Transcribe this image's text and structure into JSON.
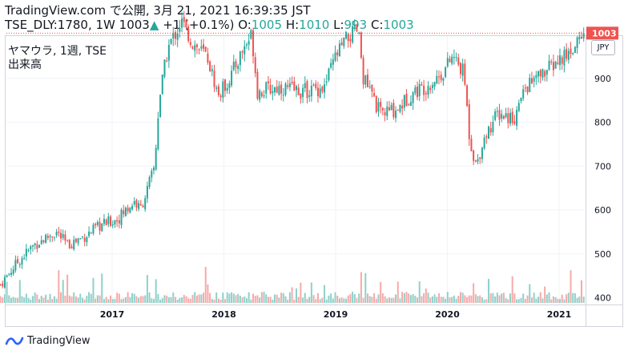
{
  "header": {
    "site": "TradingView.com",
    "published_prefix": "で公開,",
    "date": "3月 21, 2021 16:39:35 JST",
    "ticker": "TSE_DLY:1780, 1W",
    "price": "1003",
    "change": "+1 (+0.1%)",
    "o_label": "O:",
    "o_value": "1005",
    "h_label": "H:",
    "h_value": "1010",
    "l_label": "L:",
    "l_value": "993",
    "c_label": "C:",
    "c_value": "1003"
  },
  "legend": {
    "symbol": "ヤマウラ, 1週, TSE",
    "subtitle": "出来高"
  },
  "currency_button": "JPY",
  "footer": {
    "brand": "TradingView"
  },
  "colors": {
    "up": "#26a69a",
    "down": "#ef5350",
    "last": "#ef5350",
    "vol_up": "#8fd1c9",
    "vol_down": "#f5aaa9"
  },
  "chart_data": {
    "type": "candlestick",
    "last_price": 1003,
    "y_ticks": [
      400,
      500,
      600,
      700,
      800,
      900
    ],
    "x_ticks": [
      "2017",
      "2018",
      "2019",
      "2020",
      "2021"
    ],
    "close_points": [
      [
        2016.0,
        430
      ],
      [
        2016.15,
        480
      ],
      [
        2016.3,
        520
      ],
      [
        2016.5,
        550
      ],
      [
        2016.6,
        520
      ],
      [
        2016.75,
        540
      ],
      [
        2016.9,
        565
      ],
      [
        2017.05,
        580
      ],
      [
        2017.2,
        620
      ],
      [
        2017.25,
        600
      ],
      [
        2017.32,
        650
      ],
      [
        2017.38,
        700
      ],
      [
        2017.42,
        850
      ],
      [
        2017.5,
        970
      ],
      [
        2017.62,
        1030
      ],
      [
        2017.72,
        980
      ],
      [
        2017.85,
        950
      ],
      [
        2017.95,
        860
      ],
      [
        2018.05,
        900
      ],
      [
        2018.18,
        970
      ],
      [
        2018.25,
        1000
      ],
      [
        2018.3,
        870
      ],
      [
        2018.5,
        880
      ],
      [
        2018.7,
        870
      ],
      [
        2018.9,
        880
      ],
      [
        2019.0,
        950
      ],
      [
        2019.1,
        990
      ],
      [
        2019.2,
        1010
      ],
      [
        2019.25,
        900
      ],
      [
        2019.4,
        820
      ],
      [
        2019.55,
        830
      ],
      [
        2019.7,
        870
      ],
      [
        2019.8,
        880
      ],
      [
        2019.95,
        910
      ],
      [
        2020.05,
        950
      ],
      [
        2020.15,
        910
      ],
      [
        2020.2,
        760
      ],
      [
        2020.26,
        700
      ],
      [
        2020.32,
        760
      ],
      [
        2020.45,
        820
      ],
      [
        2020.6,
        810
      ],
      [
        2020.7,
        880
      ],
      [
        2020.85,
        910
      ],
      [
        2021.0,
        940
      ],
      [
        2021.1,
        960
      ],
      [
        2021.17,
        990
      ],
      [
        2021.22,
        1003
      ]
    ]
  }
}
